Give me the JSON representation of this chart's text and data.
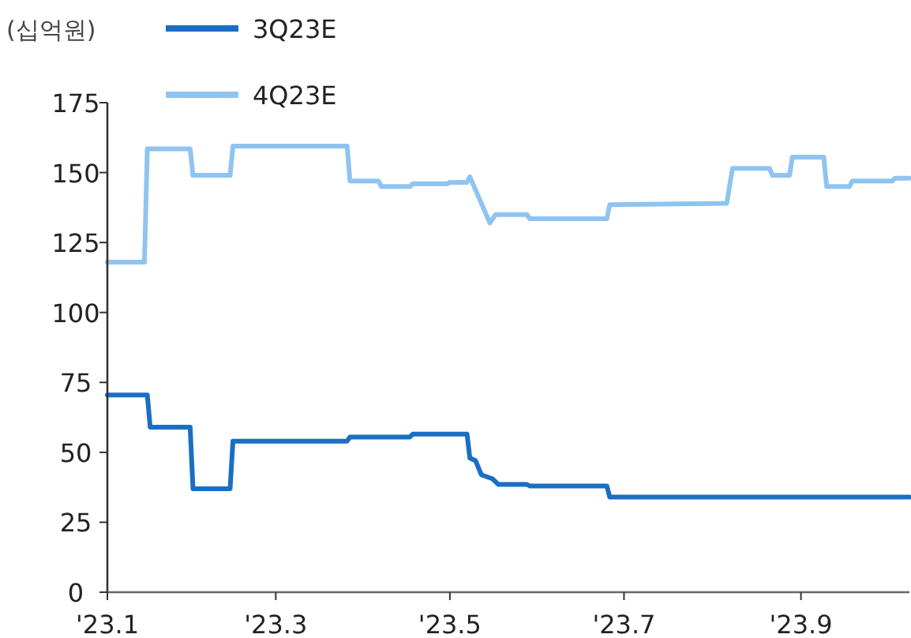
{
  "chart_data": {
    "type": "line",
    "ylabel": "(십억원)",
    "legend": "top left",
    "marker": "none",
    "line_style": "solid",
    "grid": false,
    "xlim": [
      "2023-01-01",
      "2023-10-09"
    ],
    "xticks": [
      {
        "value": "2023-01-01",
        "label": "'23.1"
      },
      {
        "value": "2023-03-01",
        "label": "'23.3"
      },
      {
        "value": "2023-05-01",
        "label": "'23.5"
      },
      {
        "value": "2023-07-01",
        "label": "'23.7"
      },
      {
        "value": "2023-09-01",
        "label": "'23.9"
      }
    ],
    "ylim": [
      0,
      175
    ],
    "yticks": [
      0,
      25,
      50,
      75,
      100,
      125,
      150,
      175
    ],
    "series": [
      {
        "name": "3Q23E",
        "color": "#1a6fc4",
        "x": [
          "2023-01-01",
          "2023-01-15",
          "2023-01-16",
          "2023-01-30",
          "2023-01-31",
          "2023-02-13",
          "2023-02-14",
          "2023-03-26",
          "2023-03-27",
          "2023-04-17",
          "2023-04-18",
          "2023-05-07",
          "2023-05-08",
          "2023-05-10",
          "2023-05-12",
          "2023-05-16",
          "2023-05-18",
          "2023-05-28",
          "2023-05-29",
          "2023-06-25",
          "2023-06-26",
          "2023-10-09"
        ],
        "values": [
          70.5,
          70.5,
          59,
          59,
          37,
          37,
          54,
          54,
          55.5,
          55.5,
          56.5,
          56.5,
          48,
          47,
          42,
          40.5,
          38.5,
          38.5,
          38,
          38,
          34,
          34
        ]
      },
      {
        "name": "4Q23E",
        "color": "#90c4f0",
        "x": [
          "2023-01-01",
          "2023-01-14",
          "2023-01-15",
          "2023-01-30",
          "2023-01-31",
          "2023-02-13",
          "2023-02-14",
          "2023-03-26",
          "2023-03-27",
          "2023-04-06",
          "2023-04-07",
          "2023-04-17",
          "2023-04-18",
          "2023-04-30",
          "2023-05-01",
          "2023-05-07",
          "2023-05-08",
          "2023-05-15",
          "2023-05-17",
          "2023-05-28",
          "2023-05-29",
          "2023-06-25",
          "2023-06-26",
          "2023-08-06",
          "2023-08-08",
          "2023-08-21",
          "2023-08-22",
          "2023-08-28",
          "2023-08-29",
          "2023-09-09",
          "2023-09-10",
          "2023-09-18",
          "2023-09-19",
          "2023-10-03",
          "2023-10-04",
          "2023-10-09"
        ],
        "values": [
          118,
          118,
          158.5,
          158.5,
          149,
          149,
          159.5,
          159.5,
          147,
          147,
          145,
          145,
          146,
          146,
          146.5,
          146.5,
          148.5,
          132,
          135,
          135,
          133.5,
          133.5,
          138.5,
          139,
          151.5,
          151.5,
          149,
          149,
          155.5,
          155.5,
          145,
          145,
          147,
          147,
          148,
          148
        ]
      }
    ]
  }
}
